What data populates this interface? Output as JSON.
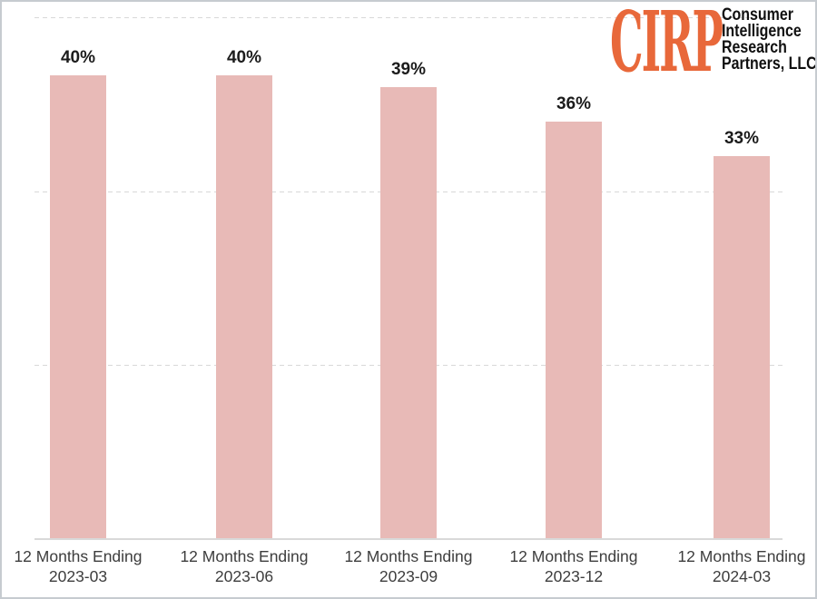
{
  "logo": {
    "abbr": "CIRP",
    "abbr_color": "#e8683a",
    "lines": [
      "Consumer",
      "Intelligence",
      "Research",
      "Partners, LLC"
    ]
  },
  "chart_data": {
    "type": "bar",
    "title": "",
    "xlabel": "",
    "ylabel": "",
    "categories": [
      {
        "line1": "12 Months Ending",
        "line2": "2023-03"
      },
      {
        "line1": "12 Months Ending",
        "line2": "2023-06"
      },
      {
        "line1": "12 Months Ending",
        "line2": "2023-09"
      },
      {
        "line1": "12 Months Ending",
        "line2": "2023-12"
      },
      {
        "line1": "12 Months Ending",
        "line2": "2024-03"
      }
    ],
    "values": [
      40,
      40,
      39,
      36,
      33
    ],
    "value_labels": [
      "40%",
      "40%",
      "39%",
      "36%",
      "33%"
    ],
    "unit": "percent",
    "ylim": [
      0,
      45
    ],
    "gridlines": [
      15,
      30,
      45
    ],
    "grid_style": "dashed",
    "legend": "none",
    "bar_color": "#e8bab7",
    "gridline_color": "#d8d8d8",
    "axis_line_color": "#d9d9d9",
    "value_label_color": "#1c1c1c",
    "category_label_color": "#3d3d3d"
  }
}
